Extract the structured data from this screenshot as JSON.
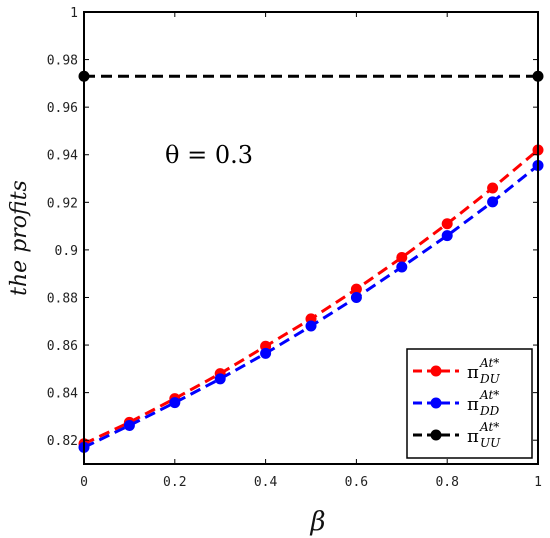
{
  "chart_data": {
    "type": "line",
    "xlabel": "β",
    "ylabel": "the profits",
    "xlim": [
      0,
      1
    ],
    "ylim": [
      0.81,
      1
    ],
    "xticks": [
      0,
      0.2,
      0.4,
      0.6,
      0.8,
      1
    ],
    "xtick_labels": [
      "0",
      "0.2",
      "0.4",
      "0.6",
      "0.8",
      "1"
    ],
    "yticks": [
      0.82,
      0.84,
      0.86,
      0.88,
      0.9,
      0.92,
      0.94,
      0.96,
      0.98,
      1
    ],
    "ytick_labels": [
      "0.82",
      "0.84",
      "0.86",
      "0.88",
      "0.9",
      "0.92",
      "0.94",
      "0.96",
      "0.98",
      "1"
    ],
    "grid": false,
    "legend_position": "bottom-right",
    "annotation": "θ = 0.3",
    "series": [
      {
        "name": "π_DU^At*",
        "symbol": "π",
        "sup": "At*",
        "sub": "DU",
        "color": "#ff0000",
        "dash": true,
        "x": [
          0,
          0.1,
          0.2,
          0.3,
          0.4,
          0.5,
          0.6,
          0.7,
          0.8,
          0.9,
          1
        ],
        "y": [
          0.8185,
          0.8275,
          0.8375,
          0.848,
          0.8595,
          0.871,
          0.8835,
          0.8968,
          0.911,
          0.926,
          0.942
        ]
      },
      {
        "name": "π_DD^At*",
        "symbol": "π",
        "sup": "At*",
        "sub": "DD",
        "color": "#0000ff",
        "dash": true,
        "x": [
          0,
          0.1,
          0.2,
          0.3,
          0.4,
          0.5,
          0.6,
          0.7,
          0.8,
          0.9,
          1
        ],
        "y": [
          0.817,
          0.8262,
          0.8358,
          0.8458,
          0.8565,
          0.868,
          0.88,
          0.8928,
          0.906,
          0.9202,
          0.9355
        ]
      },
      {
        "name": "π_UU^At*",
        "symbol": "π",
        "sup": "At*",
        "sub": "UU",
        "color": "#000000",
        "dash": true,
        "x": [
          0,
          1
        ],
        "y": [
          0.973,
          0.973
        ]
      }
    ]
  }
}
